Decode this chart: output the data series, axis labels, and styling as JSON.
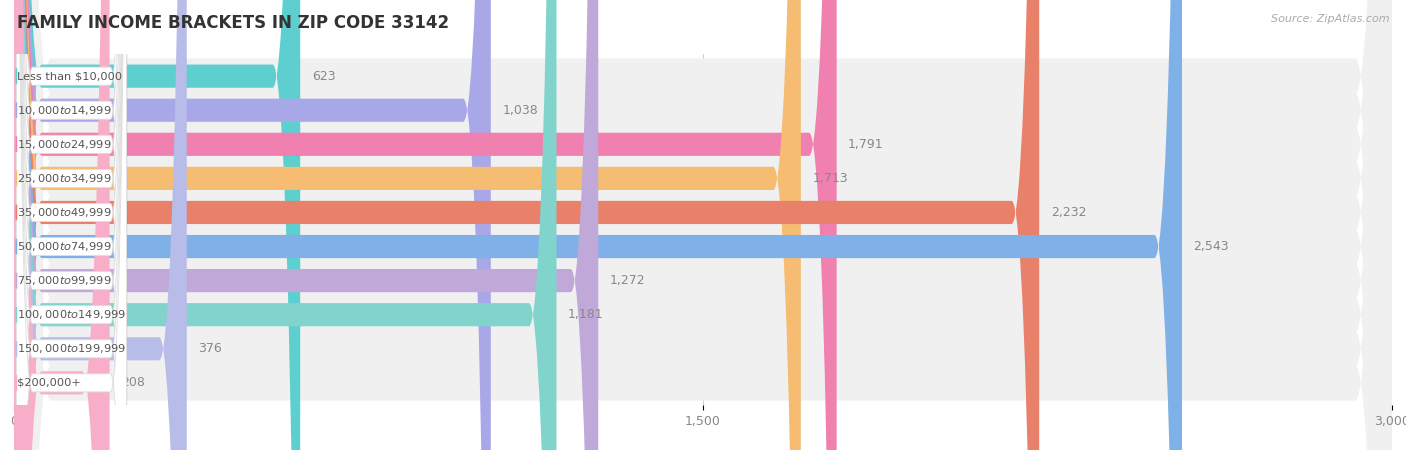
{
  "title": "FAMILY INCOME BRACKETS IN ZIP CODE 33142",
  "source": "Source: ZipAtlas.com",
  "categories": [
    "Less than $10,000",
    "$10,000 to $14,999",
    "$15,000 to $24,999",
    "$25,000 to $34,999",
    "$35,000 to $49,999",
    "$50,000 to $74,999",
    "$75,000 to $99,999",
    "$100,000 to $149,999",
    "$150,000 to $199,999",
    "$200,000+"
  ],
  "values": [
    623,
    1038,
    1791,
    1713,
    2232,
    2543,
    1272,
    1181,
    376,
    208
  ],
  "bar_colors": [
    "#5ecfcf",
    "#a8a8e8",
    "#f080b0",
    "#f5bc72",
    "#e8806a",
    "#80b0e8",
    "#c0a8d8",
    "#80d4cc",
    "#b8bce8",
    "#f8aec8"
  ],
  "xlim": [
    0,
    3000
  ],
  "xticks": [
    0,
    1500,
    3000
  ],
  "background_color": "#ffffff",
  "row_bg_color": "#f0f0f0",
  "title_fontsize": 12,
  "source_fontsize": 8
}
